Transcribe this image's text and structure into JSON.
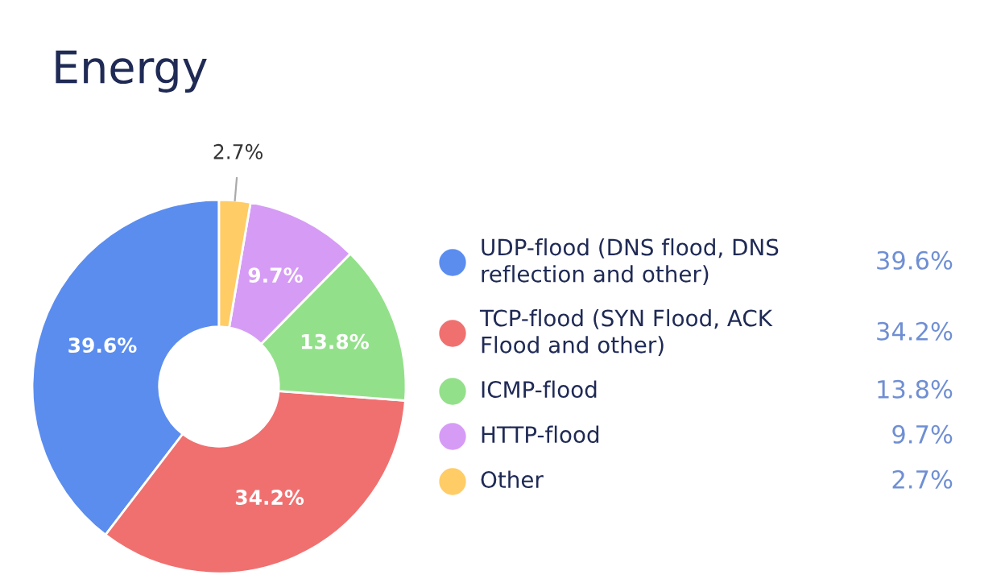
{
  "chart_data": {
    "type": "donut",
    "title": "Energy",
    "categories": [
      "UDP-flood (DNS flood, DNS reflection and other)",
      "TCP-flood (SYN Flood, ACK Flood and other)",
      "ICMP-flood",
      "HTTP-flood",
      "Other"
    ],
    "values": [
      39.6,
      34.2,
      13.8,
      9.7,
      2.7
    ],
    "colors": [
      "#5b8def",
      "#f07070",
      "#93e08a",
      "#d69cf5",
      "#ffcc66"
    ],
    "value_labels": [
      "39.6%",
      "34.2%",
      "13.8%",
      "9.7%",
      "2.7%"
    ],
    "legend": "right"
  }
}
